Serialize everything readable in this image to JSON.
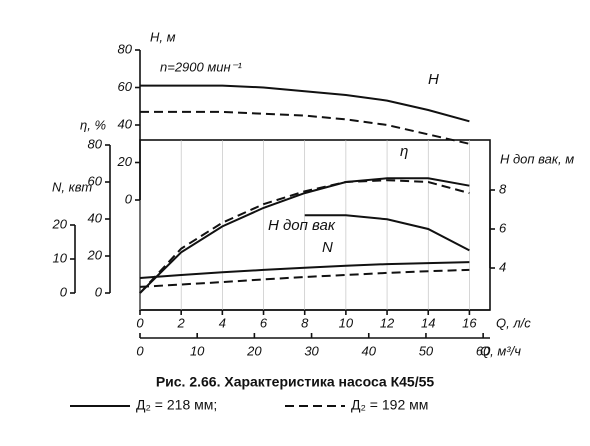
{
  "chart_data": {
    "type": "line",
    "title": "Рис. 2.66. Характеристика насоса К45/55",
    "annotation": "n=2900 мин⁻¹",
    "x": [
      0,
      2,
      4,
      6,
      8,
      10,
      12,
      14,
      16
    ],
    "xlim": [
      0,
      17
    ],
    "xticks": [
      0,
      2,
      4,
      6,
      8,
      10,
      12,
      14,
      16
    ],
    "xlabel": "Q, л/с",
    "x2lim": [
      0,
      61.2
    ],
    "x2ticks": [
      0,
      10,
      20,
      30,
      40,
      50,
      60
    ],
    "x2label": "Q, м³/ч",
    "grid": true,
    "color": "#111111",
    "axes": {
      "H": {
        "label": "H, м",
        "lim": [
          0,
          80
        ],
        "ticks": [
          0,
          20,
          40,
          60,
          80
        ]
      },
      "eta": {
        "label": "η, %",
        "lim": [
          0,
          80
        ],
        "ticks": [
          0,
          20,
          40,
          60,
          80
        ]
      },
      "N": {
        "label": "N, квт",
        "lim": [
          0,
          20
        ],
        "ticks": [
          0,
          10,
          20
        ]
      },
      "Hvac": {
        "label": "H доп вак, м",
        "lim": [
          4,
          8
        ],
        "ticks": [
          4,
          6,
          8
        ]
      }
    },
    "legend": [
      {
        "label": "Д₂ = 218 мм;",
        "dash": "solid"
      },
      {
        "label": "Д₂ = 192 мм",
        "dash": "dashed"
      }
    ],
    "series": [
      {
        "name": "H",
        "axis": "H",
        "values": [
          61,
          61,
          61,
          60,
          58,
          56,
          53,
          48,
          42
        ],
        "dashed_values": [
          47,
          47,
          47,
          46,
          45,
          43,
          40,
          35,
          30
        ]
      },
      {
        "name": "η",
        "axis": "eta",
        "values": [
          0,
          22,
          36,
          46,
          54,
          60,
          62,
          62,
          58
        ],
        "dashed_values": [
          0,
          24,
          38,
          48,
          55,
          60,
          61,
          60,
          54
        ]
      },
      {
        "name": "H доп вак",
        "axis": "Hvac",
        "values": [
          null,
          null,
          null,
          null,
          6.7,
          6.7,
          6.5,
          6.0,
          4.9
        ]
      },
      {
        "name": "N",
        "axis": "N",
        "values": [
          4.4,
          5.3,
          6.1,
          6.8,
          7.4,
          8.0,
          8.5,
          8.8,
          9.1
        ],
        "dashed_values": [
          1.8,
          2.5,
          3.2,
          4.0,
          4.7,
          5.3,
          5.9,
          6.4,
          6.8
        ]
      }
    ]
  }
}
